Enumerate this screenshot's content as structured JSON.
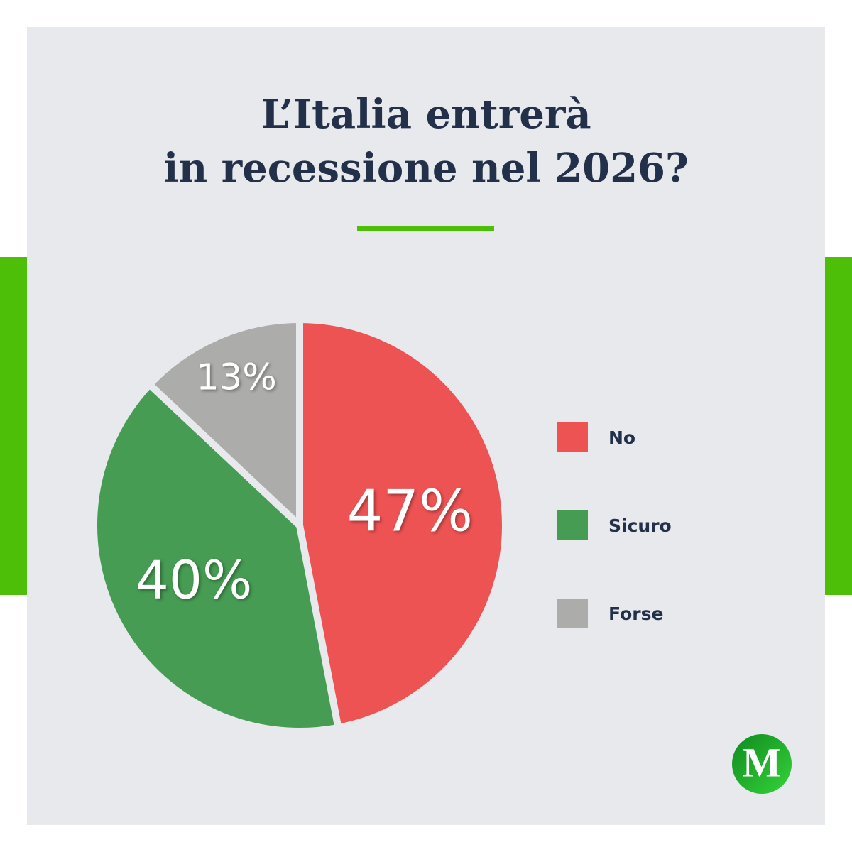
{
  "chart_data": {
    "type": "pie",
    "title": "L’Italia entrerà\nin recessione nel 2026?",
    "categories": [
      "No",
      "Sicuro",
      "Forse"
    ],
    "values": [
      47,
      40,
      13
    ],
    "value_labels": [
      "47%",
      "40%",
      "13%"
    ],
    "colors": [
      "#ee5354",
      "#469c53",
      "#acacaa"
    ],
    "legend": "right"
  },
  "logo": "M"
}
